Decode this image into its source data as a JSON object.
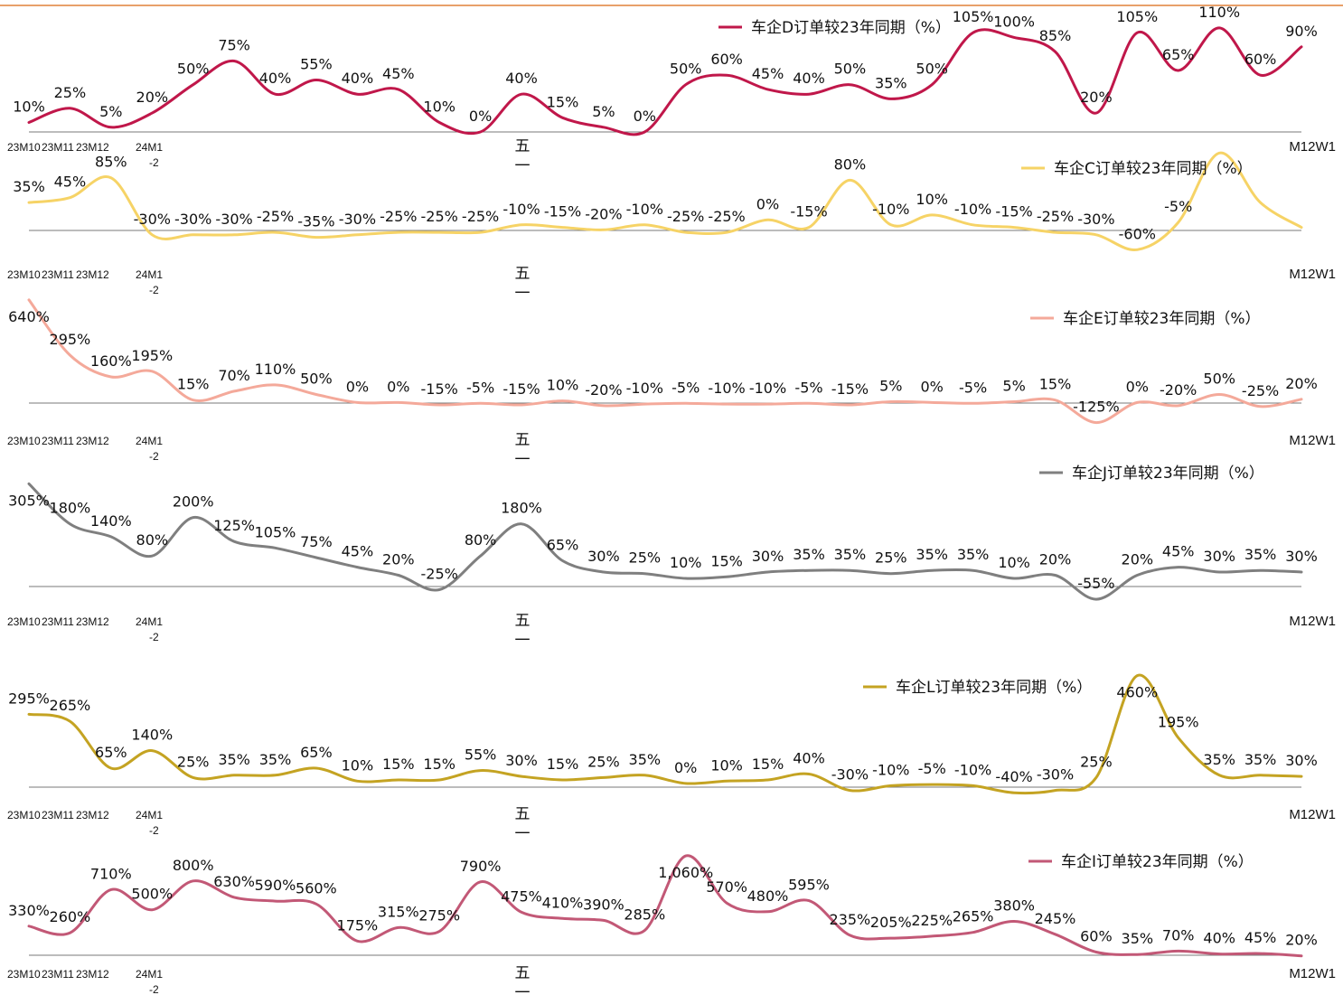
{
  "chart_data": [
    {
      "type": "line",
      "series": [
        {
          "name": "车企D订单较23年同期（%）",
          "values": [
            10,
            25,
            5,
            20,
            50,
            75,
            40,
            55,
            40,
            45,
            10,
            0,
            40,
            15,
            5,
            0,
            50,
            60,
            45,
            40,
            50,
            35,
            50,
            105,
            100,
            85,
            20,
            105,
            65,
            110,
            60,
            90
          ],
          "labels": [
            "10%",
            "25%",
            "5%",
            "20%",
            "50%",
            "75%",
            "40%",
            "55%",
            "40%",
            "45%",
            "10%",
            "0%",
            "40%",
            "15%",
            "5%",
            "0%",
            "50%",
            "60%",
            "45%",
            "40%",
            "50%",
            "35%",
            "50%",
            "105%",
            "100%",
            "85%",
            "20%",
            "105%",
            "65%",
            "110%",
            "60%",
            "90%"
          ]
        }
      ],
      "x_ticks": [
        "23M10",
        "23M11",
        "23M12",
        "24M1-2",
        "五一",
        "M12W1"
      ],
      "color": "#c0174a",
      "ylim": [
        0,
        130
      ]
    },
    {
      "type": "line",
      "series": [
        {
          "name": "车企C订单较23年同期（%）",
          "values": [
            35,
            45,
            85,
            -30,
            -30,
            -30,
            -25,
            -35,
            -30,
            -25,
            -25,
            -25,
            -10,
            -15,
            -20,
            -10,
            -25,
            -25,
            0,
            -15,
            80,
            -10,
            10,
            -10,
            -15,
            -25,
            -30,
            -60,
            -5,
            135,
            35,
            -15
          ],
          "labels": [
            "35%",
            "45%",
            "85%",
            "-30%",
            "-30%",
            "-30%",
            "-25%",
            "-35%",
            "-30%",
            "-25%",
            "-25%",
            "-25%",
            "-10%",
            "-15%",
            "-20%",
            "-10%",
            "-25%",
            "-25%",
            "0%",
            "-15%",
            "80%",
            "-10%",
            "10%",
            "-10%",
            "-15%",
            "-25%",
            "-30%",
            "-60%",
            "-5%",
            "",
            "",
            ""
          ]
        }
      ],
      "x_ticks": [
        "23M10",
        "23M11",
        "23M12",
        "24M1-2",
        "五一",
        "M12W1"
      ],
      "color": "#f6d366",
      "ylim": [
        -85,
        130
      ]
    },
    {
      "type": "line",
      "series": [
        {
          "name": "车企E订单较23年同期（%）",
          "values": [
            640,
            295,
            160,
            195,
            15,
            70,
            110,
            50,
            0,
            0,
            -15,
            -5,
            -15,
            10,
            -20,
            -10,
            -5,
            -10,
            -10,
            -5,
            -15,
            5,
            0,
            -5,
            5,
            15,
            -125,
            0,
            -20,
            50,
            -25,
            20
          ],
          "labels": [
            "640%",
            "295%",
            "160%",
            "195%",
            "15%",
            "70%",
            "110%",
            "50%",
            "0%",
            "0%",
            "-15%",
            "-5%",
            "-15%",
            "10%",
            "-20%",
            "-10%",
            "-5%",
            "-10%",
            "-10%",
            "-5%",
            "-15%",
            "5%",
            "0%",
            "-5%",
            "5%",
            "15%",
            "-125%",
            "0%",
            "-20%",
            "50%",
            "-25%",
            "20%"
          ]
        }
      ],
      "x_ticks": [
        "23M10",
        "23M11",
        "23M12",
        "24M1-2",
        "五一",
        "M12W1"
      ],
      "color": "#f4a99a",
      "ylim": [
        -150,
        650
      ]
    },
    {
      "type": "line",
      "series": [
        {
          "name": "车企J订单较23年同期（%）",
          "values": [
            305,
            180,
            140,
            80,
            200,
            125,
            105,
            75,
            45,
            20,
            -25,
            80,
            180,
            65,
            30,
            25,
            10,
            15,
            30,
            35,
            35,
            25,
            35,
            35,
            10,
            20,
            -55,
            20,
            45,
            30,
            35,
            30
          ],
          "labels": [
            "305%",
            "180%",
            "140%",
            "80%",
            "200%",
            "125%",
            "105%",
            "75%",
            "45%",
            "20%",
            "-25%",
            "80%",
            "180%",
            "65%",
            "30%",
            "25%",
            "10%",
            "15%",
            "30%",
            "35%",
            "35%",
            "25%",
            "35%",
            "35%",
            "10%",
            "20%",
            "-55%",
            "20%",
            "45%",
            "30%",
            "35%",
            "30%"
          ]
        }
      ],
      "x_ticks": [
        "23M10",
        "23M11",
        "23M12",
        "24M1-2",
        "五一",
        "M12W1"
      ],
      "color": "#7f7f7f",
      "ylim": [
        -80,
        320
      ]
    },
    {
      "type": "line",
      "series": [
        {
          "name": "车企L订单较23年同期（%）",
          "values": [
            295,
            265,
            65,
            140,
            25,
            35,
            35,
            65,
            10,
            15,
            15,
            55,
            30,
            15,
            25,
            35,
            0,
            10,
            15,
            40,
            -30,
            -10,
            -5,
            -10,
            -40,
            -30,
            25,
            460,
            195,
            35,
            35,
            30
          ],
          "labels": [
            "295%",
            "265%",
            "65%",
            "140%",
            "25%",
            "35%",
            "35%",
            "65%",
            "10%",
            "15%",
            "15%",
            "55%",
            "30%",
            "15%",
            "25%",
            "35%",
            "0%",
            "10%",
            "15%",
            "40%",
            "-30%",
            "-10%",
            "-5%",
            "-10%",
            "-40%",
            "-30%",
            "25%",
            "460%",
            "195%",
            "35%",
            "35%",
            "30%"
          ]
        }
      ],
      "x_ticks": [
        "23M10",
        "23M11",
        "23M12",
        "24M1-2",
        "五一",
        "M12W1"
      ],
      "color": "#c4a322",
      "ylim": [
        -70,
        470
      ]
    },
    {
      "type": "line",
      "series": [
        {
          "name": "车企I订单较23年同期（%）",
          "values": [
            330,
            260,
            710,
            500,
            800,
            630,
            590,
            560,
            175,
            315,
            275,
            790,
            475,
            410,
            390,
            285,
            1060,
            570,
            480,
            595,
            235,
            205,
            225,
            265,
            380,
            245,
            60,
            35,
            70,
            40,
            45,
            20
          ],
          "labels": [
            "330%",
            "260%",
            "710%",
            "500%",
            "800%",
            "630%",
            "590%",
            "560%",
            "175%",
            "315%",
            "275%",
            "790%",
            "475%",
            "410%",
            "390%",
            "285%",
            "1,060%",
            "570%",
            "480%",
            "595%",
            "235%",
            "205%",
            "225%",
            "265%",
            "380%",
            "245%",
            "60%",
            "35%",
            "70%",
            "40%",
            "45%",
            "20%"
          ]
        }
      ],
      "x_ticks": [
        "23M10",
        "23M11",
        "23M12",
        "24M1-2",
        "五一",
        "M12W1"
      ],
      "color": "#c25876",
      "ylim": [
        -20,
        1080
      ]
    }
  ]
}
